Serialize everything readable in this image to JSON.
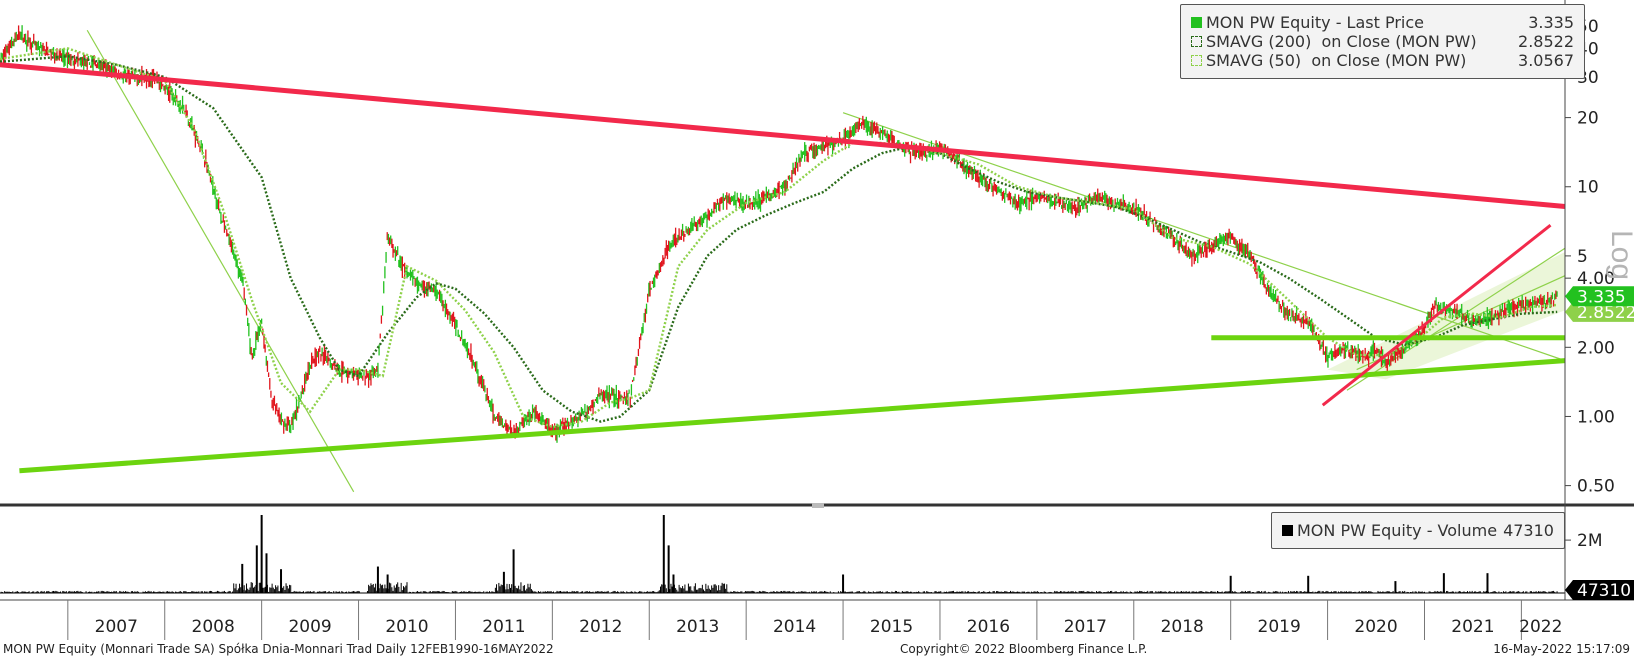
{
  "colors": {
    "candle_up": "#22c11f",
    "candle_down": "#e0151d",
    "sma200": "#2a6b1a",
    "sma50": "#8ed14a",
    "resistance": "#f2294b",
    "support": "#6cd40f",
    "price_badge": "#22c11f",
    "volume": "#000000"
  },
  "legend_price": {
    "rows": [
      {
        "label": "MON PW Equity - Last Price",
        "value": "3.335",
        "swatch": "#22c11f"
      },
      {
        "label": "SMAVG (200)  on Close (MON PW)",
        "value": "2.8522",
        "swatch": "#2a6b1a"
      },
      {
        "label": "SMAVG (50)  on Close (MON PW)",
        "value": "3.0567",
        "swatch": "#8ed14a"
      }
    ]
  },
  "legend_volume": {
    "label": "MON PW Equity - Volume",
    "value": "47310"
  },
  "price_axis_title": "Log",
  "badges": {
    "last_price": "3.335",
    "sma200": "2.8522",
    "volume": "47310"
  },
  "footer": {
    "left": "MON PW Equity (Monnari Trade SA) Spółka Dnia-Monnari Trad  Daily 12FEB1990-16MAY2022",
    "center": "Copyright© 2022 Bloomberg Finance L.P.",
    "right": "16-May-2022 15:17:09"
  },
  "chart_data": [
    {
      "type": "line",
      "title": "MON PW Equity - Last Price",
      "yscale": "log",
      "ylim": [
        0.42,
        60
      ],
      "xlim": [
        2006.3,
        2022.45
      ],
      "y_ticks": [
        {
          "v": 50,
          "label": "50"
        },
        {
          "v": 40,
          "label": "40"
        },
        {
          "v": 30,
          "label": "30"
        },
        {
          "v": 20,
          "label": "20"
        },
        {
          "v": 10,
          "label": "10"
        },
        {
          "v": 5,
          "label": "5"
        },
        {
          "v": 4,
          "label": "4.00"
        },
        {
          "v": 2,
          "label": "2.00"
        },
        {
          "v": 1,
          "label": "1.00"
        },
        {
          "v": 0.5,
          "label": "0.50"
        }
      ],
      "x_labels": [
        "2007",
        "2008",
        "2009",
        "2010",
        "2011",
        "2012",
        "2013",
        "2014",
        "2015",
        "2016",
        "2017",
        "2018",
        "2019",
        "2020",
        "2021",
        "2022"
      ],
      "series": [
        {
          "name": "MON PW Equity - Last Price",
          "x": [
            2006.3,
            2006.4,
            2006.5,
            2006.7,
            2007.0,
            2007.3,
            2007.6,
            2007.9,
            2008.2,
            2008.4,
            2008.6,
            2008.8,
            2008.9,
            2009.0,
            2009.1,
            2009.2,
            2009.3,
            2009.4,
            2009.5,
            2009.6,
            2009.8,
            2010.0,
            2010.1,
            2010.2,
            2010.3,
            2010.35,
            2010.45,
            2010.6,
            2010.8,
            2011.0,
            2011.2,
            2011.4,
            2011.6,
            2011.8,
            2011.9,
            2012.0,
            2012.2,
            2012.4,
            2012.5,
            2012.6,
            2012.7,
            2012.8,
            2013.0,
            2013.2,
            2013.4,
            2013.6,
            2013.8,
            2014.0,
            2014.2,
            2014.4,
            2014.6,
            2014.8,
            2015.0,
            2015.2,
            2015.4,
            2015.6,
            2015.8,
            2016.0,
            2016.2,
            2016.4,
            2016.6,
            2016.8,
            2017.0,
            2017.2,
            2017.4,
            2017.6,
            2017.8,
            2018.0,
            2018.2,
            2018.4,
            2018.6,
            2018.8,
            2019.0,
            2019.2,
            2019.4,
            2019.6,
            2019.8,
            2019.9,
            2020.0,
            2020.2,
            2020.3,
            2020.4,
            2020.5,
            2020.6,
            2020.8,
            2021.0,
            2021.1,
            2021.3,
            2021.5,
            2021.7,
            2021.9,
            2022.1,
            2022.3,
            2022.37
          ],
          "values": [
            35,
            41,
            46,
            40,
            36,
            34,
            30,
            30,
            22,
            14,
            7,
            4,
            1.8,
            2.6,
            1.2,
            0.95,
            0.9,
            1.2,
            1.7,
            1.9,
            1.6,
            1.5,
            1.5,
            1.6,
            6,
            5.5,
            4.5,
            3.8,
            3.5,
            2.5,
            1.7,
            1.0,
            0.85,
            1.05,
            0.95,
            0.85,
            0.95,
            1.1,
            1.25,
            1.25,
            1.2,
            1.2,
            3.5,
            5.5,
            6.5,
            7.5,
            9,
            8.5,
            9,
            10,
            14,
            15,
            16,
            19,
            17,
            15,
            14,
            15,
            13,
            11,
            9.5,
            8.5,
            9,
            8.5,
            8,
            9,
            8.5,
            8,
            7,
            6,
            5,
            5.5,
            6,
            5,
            3.5,
            2.8,
            2.6,
            2.2,
            1.8,
            2.0,
            1.9,
            1.8,
            2.0,
            1.7,
            2.0,
            2.4,
            3.0,
            2.9,
            2.6,
            2.7,
            3.0,
            3.1,
            3.2,
            3.335
          ]
        },
        {
          "name": "SMAVG (200)  on Close (MON PW)",
          "x": [
            2006.3,
            2007.0,
            2007.5,
            2008.0,
            2008.5,
            2009.0,
            2009.3,
            2009.6,
            2009.8,
            2010.0,
            2010.3,
            2010.6,
            2010.8,
            2011.0,
            2011.3,
            2011.6,
            2011.9,
            2012.2,
            2012.5,
            2012.7,
            2013.0,
            2013.3,
            2013.6,
            2013.9,
            2014.2,
            2014.5,
            2014.8,
            2015.1,
            2015.4,
            2015.7,
            2016.0,
            2016.3,
            2016.6,
            2016.9,
            2017.2,
            2017.5,
            2017.8,
            2018.1,
            2018.4,
            2018.7,
            2019.0,
            2019.3,
            2019.6,
            2019.9,
            2020.2,
            2020.5,
            2020.8,
            2021.1,
            2021.4,
            2021.7,
            2022.0,
            2022.37
          ],
          "values": [
            35,
            37,
            34,
            30,
            22,
            11,
            4,
            2.2,
            1.6,
            1.5,
            2.3,
            3.3,
            3.8,
            3.6,
            2.8,
            2.0,
            1.3,
            1.05,
            0.95,
            1.0,
            1.3,
            3.0,
            5,
            6.5,
            7.5,
            8.5,
            9.5,
            12,
            14,
            15,
            14,
            12,
            10.5,
            9.5,
            9,
            8.6,
            8.2,
            7.4,
            6.5,
            5.7,
            5.2,
            4.7,
            4.0,
            3.3,
            2.7,
            2.2,
            2.05,
            2.2,
            2.5,
            2.65,
            2.8,
            2.8522
          ]
        },
        {
          "name": "SMAVG (50)  on Close (MON PW)",
          "x": [
            2006.3,
            2007.0,
            2007.5,
            2008.0,
            2008.3,
            2008.6,
            2008.9,
            2009.2,
            2009.5,
            2009.8,
            2010.0,
            2010.25,
            2010.5,
            2010.8,
            2011.1,
            2011.4,
            2011.7,
            2012.0,
            2012.3,
            2012.6,
            2012.8,
            2013.0,
            2013.3,
            2013.6,
            2014.0,
            2014.4,
            2014.8,
            2015.1,
            2015.4,
            2015.7,
            2016.0,
            2016.4,
            2016.8,
            2017.2,
            2017.6,
            2018.0,
            2018.4,
            2018.8,
            2019.2,
            2019.6,
            2020.0,
            2020.3,
            2020.6,
            2020.9,
            2021.2,
            2021.5,
            2021.8,
            2022.1,
            2022.37
          ],
          "values": [
            36,
            40,
            34,
            29,
            18,
            8,
            3.2,
            1.4,
            1.05,
            1.6,
            1.6,
            1.5,
            4.5,
            3.9,
            2.9,
            1.9,
            1.0,
            0.9,
            0.95,
            1.15,
            1.2,
            1.3,
            4.5,
            6.5,
            8.5,
            9.5,
            13,
            15.5,
            15.5,
            15,
            14,
            12.5,
            10,
            9,
            8.5,
            8,
            6,
            5.5,
            4.6,
            3.2,
            2.2,
            1.85,
            1.85,
            2.1,
            2.7,
            2.8,
            2.7,
            3.0,
            3.0567
          ]
        },
        {
          "name": "resistance",
          "x": [
            2006.3,
            2022.45
          ],
          "values": [
            34,
            8.2
          ]
        },
        {
          "name": "support-long",
          "x": [
            2006.5,
            2022.45
          ],
          "values": [
            0.58,
            1.75
          ]
        },
        {
          "name": "support-horizontal",
          "x": [
            2018.8,
            2022.45
          ],
          "values": [
            2.2,
            2.2
          ]
        },
        {
          "name": "breakout",
          "x": [
            2019.95,
            2022.3
          ],
          "values": [
            1.12,
            6.8
          ]
        }
      ]
    },
    {
      "type": "bar",
      "title": "MON PW Equity - Volume",
      "ylim": [
        0,
        3100000
      ],
      "y_ticks": [
        {
          "v": 2000000,
          "label": "2M"
        }
      ],
      "spikes": [
        {
          "x": 2009.0,
          "v": 2950000
        },
        {
          "x": 2008.95,
          "v": 1800000
        },
        {
          "x": 2009.05,
          "v": 1500000
        },
        {
          "x": 2008.8,
          "v": 1100000
        },
        {
          "x": 2009.2,
          "v": 900000
        },
        {
          "x": 2010.2,
          "v": 1000000
        },
        {
          "x": 2010.3,
          "v": 700000
        },
        {
          "x": 2011.6,
          "v": 1650000
        },
        {
          "x": 2011.5,
          "v": 800000
        },
        {
          "x": 2013.15,
          "v": 2950000
        },
        {
          "x": 2013.2,
          "v": 1800000
        },
        {
          "x": 2013.25,
          "v": 700000
        },
        {
          "x": 2015.0,
          "v": 700000
        },
        {
          "x": 2019.0,
          "v": 650000
        },
        {
          "x": 2019.8,
          "v": 650000
        },
        {
          "x": 2020.7,
          "v": 450000
        },
        {
          "x": 2021.2,
          "v": 750000
        },
        {
          "x": 2021.65,
          "v": 750000
        }
      ],
      "last_value": 47310
    }
  ]
}
